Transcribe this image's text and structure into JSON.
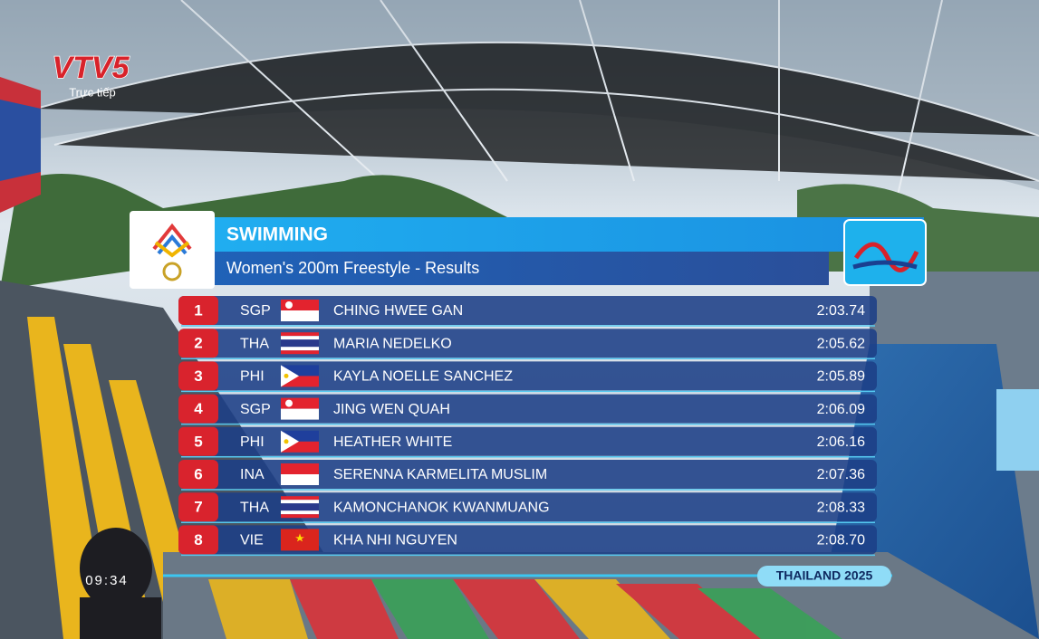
{
  "broadcast": {
    "channel": "VTV5",
    "status": "Trực tiếp",
    "clock": "09:34",
    "event_tag": "THAILAND 2025"
  },
  "results": {
    "sport": "SWIMMING",
    "event": "Women's 200m Freestyle - Results",
    "rows": [
      {
        "rank": 1,
        "country": "SGP",
        "name": "CHING HWEE GAN",
        "time": "2:03.74"
      },
      {
        "rank": 2,
        "country": "THA",
        "name": "MARIA NEDELKO",
        "time": "2:05.62"
      },
      {
        "rank": 3,
        "country": "PHI",
        "name": "KAYLA NOELLE SANCHEZ",
        "time": "2:05.89"
      },
      {
        "rank": 4,
        "country": "SGP",
        "name": "JING WEN QUAH",
        "time": "2:06.09"
      },
      {
        "rank": 5,
        "country": "PHI",
        "name": "HEATHER WHITE",
        "time": "2:06.16"
      },
      {
        "rank": 6,
        "country": "INA",
        "name": "SERENNA KARMELITA MUSLIM",
        "time": "2:07.36"
      },
      {
        "rank": 7,
        "country": "THA",
        "name": "KAMONCHANOK KWANMUANG",
        "time": "2:08.33"
      },
      {
        "rank": 8,
        "country": "VIE",
        "name": "KHA NHI NGUYEN",
        "time": "2:08.70"
      }
    ]
  }
}
